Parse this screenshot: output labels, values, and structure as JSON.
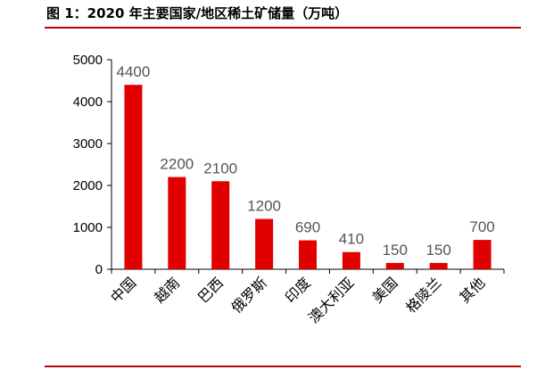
{
  "figure": {
    "title": "图 1：2020 年主要国家/地区稀土矿储量（万吨）"
  },
  "colors": {
    "bar": "#e00000",
    "rule": "#c00000",
    "axis": "#000000",
    "data_label": "#555555"
  },
  "chart_data": {
    "type": "bar",
    "title": "图 1：2020 年主要国家/地区稀土矿储量（万吨）",
    "categories": [
      "中国",
      "越南",
      "巴西",
      "俄罗斯",
      "印度",
      "澳大利亚",
      "美国",
      "格陵兰",
      "其他"
    ],
    "values": [
      4400,
      2200,
      2100,
      1200,
      690,
      410,
      150,
      150,
      700
    ],
    "data_labels": [
      "4400",
      "2200",
      "2100",
      "1200",
      "690",
      "410",
      "150",
      "150",
      "700"
    ],
    "yticks": [
      0,
      1000,
      2000,
      3000,
      4000,
      5000
    ],
    "ytick_labels": [
      "0",
      "1000",
      "2000",
      "3000",
      "4000",
      "5000"
    ],
    "ylim": [
      0,
      5000
    ],
    "xlabel": "",
    "ylabel": "",
    "grid": false,
    "legend": "none"
  }
}
